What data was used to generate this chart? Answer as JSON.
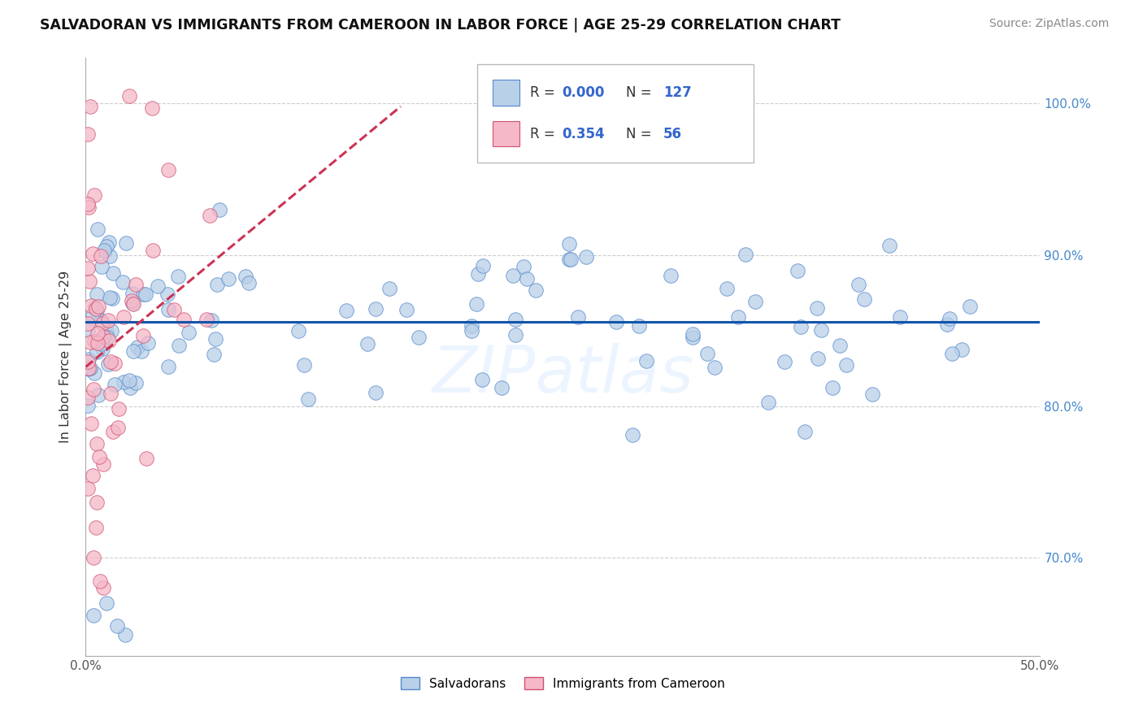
{
  "title": "SALVADORAN VS IMMIGRANTS FROM CAMEROON IN LABOR FORCE | AGE 25-29 CORRELATION CHART",
  "source": "Source: ZipAtlas.com",
  "ylabel": "In Labor Force | Age 25-29",
  "xmin": 0.0,
  "xmax": 0.5,
  "ymin": 0.635,
  "ymax": 1.03,
  "xtick_positions": [
    0.0,
    0.05,
    0.1,
    0.15,
    0.2,
    0.25,
    0.3,
    0.35,
    0.4,
    0.45,
    0.5
  ],
  "xtick_labels": [
    "0.0%",
    "",
    "",
    "",
    "",
    "",
    "",
    "",
    "",
    "",
    "50.0%"
  ],
  "ytick_positions": [
    0.7,
    0.8,
    0.9,
    1.0
  ],
  "ytick_labels": [
    "70.0%",
    "80.0%",
    "90.0%",
    "100.0%"
  ],
  "blue_R": "0.000",
  "blue_N": "127",
  "pink_R": "0.354",
  "pink_N": "56",
  "blue_fill": "#b8d0e8",
  "blue_edge": "#5588cc",
  "pink_fill": "#f5b8c8",
  "pink_edge": "#d05070",
  "blue_line_color": "#1155aa",
  "pink_line_color": "#cc3355",
  "legend_label_blue": "Salvadorans",
  "legend_label_pink": "Immigrants from Cameroon",
  "watermark": "ZIPatlas",
  "blue_trend_y": 0.856,
  "pink_trend_x0": 0.0,
  "pink_trend_x1": 0.165,
  "pink_trend_y0": 0.826,
  "pink_trend_y1": 0.998
}
